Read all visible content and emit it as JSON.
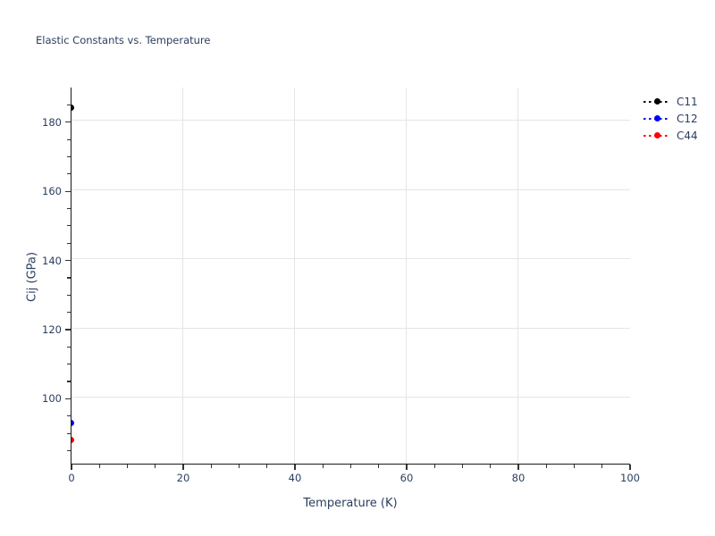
{
  "style": {
    "text_color": "#2a3f5f",
    "grid_color": "#e5e5e5",
    "spine_color": "#1a1a1a",
    "tick_color": "#333333",
    "background_color": "#ffffff"
  },
  "chart_data": {
    "type": "scatter",
    "title": "Elastic Constants vs. Temperature",
    "xlabel": "Temperature (K)",
    "ylabel": "Cij (GPa)",
    "xlim": [
      0,
      100
    ],
    "ylim": [
      81,
      189.5
    ],
    "x_major_ticks": [
      0,
      20,
      40,
      60,
      80,
      100
    ],
    "x_minor_tick_step": 5,
    "y_major_ticks": [
      100,
      120,
      140,
      160,
      180
    ],
    "y_minor_tick_step": 5,
    "grid": "major-only",
    "grid_x_lines": [
      20,
      40,
      60,
      80
    ],
    "grid_y_lines": [
      100,
      120,
      140,
      160,
      180
    ],
    "legend_position": "outside-top-right",
    "series": [
      {
        "name": "C11",
        "color": "#000000",
        "line_style": "dotted",
        "marker": "circle",
        "x": [
          0
        ],
        "y": [
          183.6
        ]
      },
      {
        "name": "C12",
        "color": "#0000ff",
        "line_style": "dotted",
        "marker": "circle",
        "x": [
          0
        ],
        "y": [
          92.4
        ]
      },
      {
        "name": "C44",
        "color": "#ff0000",
        "line_style": "dotted",
        "marker": "circle",
        "x": [
          0
        ],
        "y": [
          87.7
        ]
      }
    ]
  }
}
